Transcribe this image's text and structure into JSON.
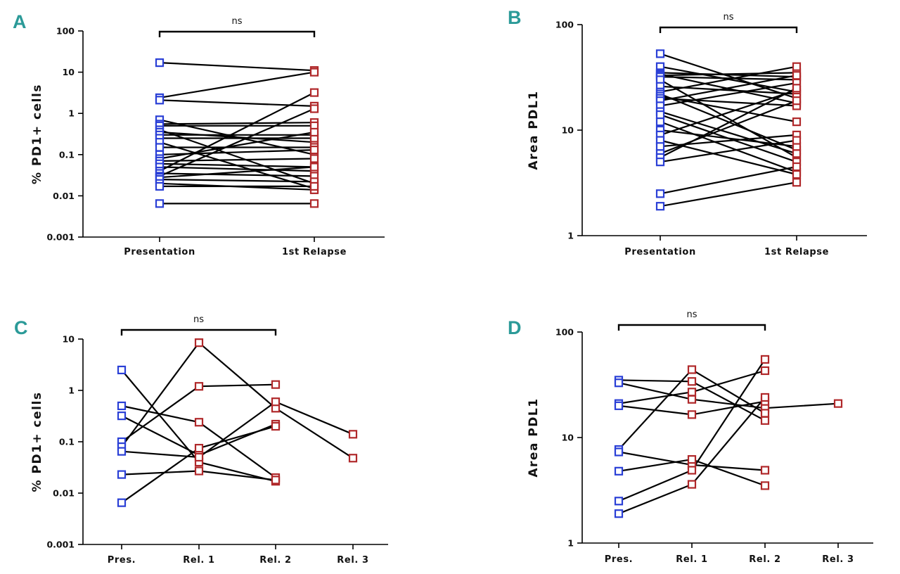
{
  "panels": [
    {
      "letter": "A",
      "ylabel": "% PD1+ cells",
      "ylim": [
        0.001,
        100
      ],
      "yscale": "log",
      "yticks": [
        "100",
        "10",
        "1",
        "0.1",
        "0.01",
        "0.001"
      ],
      "categories": [
        "Presentation",
        "1st Relapse"
      ],
      "significance": "ns",
      "bracket_span": [
        0,
        1
      ]
    },
    {
      "letter": "B",
      "ylabel": "Area PDL1",
      "ylim": [
        1,
        100
      ],
      "yscale": "log",
      "yticks": [
        "100",
        "10",
        "1"
      ],
      "categories": [
        "Presentation",
        "1st Relapse"
      ],
      "significance": "ns",
      "bracket_span": [
        0,
        1
      ]
    },
    {
      "letter": "C",
      "ylabel": "% PD1+ cells",
      "ylim": [
        0.001,
        10
      ],
      "yscale": "log",
      "yticks": [
        "10",
        "1",
        "0.1",
        "0.01",
        "0.001"
      ],
      "categories": [
        "Pres.",
        "Rel. 1",
        "Rel. 2",
        "Rel. 3"
      ],
      "significance": "ns",
      "bracket_span": [
        0,
        2
      ]
    },
    {
      "letter": "D",
      "ylabel": "Area PDL1",
      "ylim": [
        1,
        100
      ],
      "yscale": "log",
      "yticks": [
        "100",
        "10",
        "1"
      ],
      "categories": [
        "Pres.",
        "Rel. 1",
        "Rel. 2",
        "Rel. 3"
      ],
      "significance": "ns",
      "bracket_span": [
        0,
        2
      ]
    }
  ],
  "colors": {
    "presentation": "#2a3fd6",
    "relapse": "#b0282a",
    "line": "#000000",
    "letter": "#2b9a98"
  },
  "chart_data": [
    {
      "type": "scatter",
      "yscale": "log",
      "ylabel": "% PD1+ cells",
      "categories": [
        "Presentation",
        "1st Relapse"
      ],
      "ylim": [
        0.001,
        100
      ],
      "paired_values": [
        [
          17,
          11
        ],
        [
          2.4,
          10
        ],
        [
          2.1,
          1.5
        ],
        [
          0.7,
          0.1
        ],
        [
          0.55,
          0.6
        ],
        [
          0.5,
          0.5
        ],
        [
          0.4,
          0.02
        ],
        [
          0.35,
          0.2
        ],
        [
          0.3,
          0.3
        ],
        [
          0.25,
          0.25
        ],
        [
          0.2,
          0.015
        ],
        [
          0.15,
          0.15
        ],
        [
          0.1,
          0.13
        ],
        [
          0.08,
          0.35
        ],
        [
          0.07,
          0.08
        ],
        [
          0.06,
          0.05
        ],
        [
          0.05,
          0.04
        ],
        [
          0.04,
          3.2
        ],
        [
          0.035,
          0.03
        ],
        [
          0.03,
          1.3
        ],
        [
          0.028,
          0.05
        ],
        [
          0.025,
          0.022
        ],
        [
          0.02,
          0.014
        ],
        [
          0.017,
          0.017
        ],
        [
          0.0065,
          0.0065
        ]
      ]
    },
    {
      "type": "scatter",
      "yscale": "log",
      "ylabel": "Area PDL1",
      "categories": [
        "Presentation",
        "1st Relapse"
      ],
      "ylim": [
        1,
        100
      ],
      "paired_values": [
        [
          53,
          20
        ],
        [
          40,
          23
        ],
        [
          35,
          32
        ],
        [
          34,
          18
        ],
        [
          33,
          35
        ],
        [
          32,
          30
        ],
        [
          30,
          5.5
        ],
        [
          26,
          22
        ],
        [
          23,
          40
        ],
        [
          22,
          6.5
        ],
        [
          21,
          12
        ],
        [
          20,
          17
        ],
        [
          19,
          33
        ],
        [
          17,
          28
        ],
        [
          15,
          6
        ],
        [
          14,
          5
        ],
        [
          12,
          4
        ],
        [
          10,
          7
        ],
        [
          9,
          24
        ],
        [
          8,
          3.8
        ],
        [
          7,
          9
        ],
        [
          6,
          19
        ],
        [
          5.5,
          25
        ],
        [
          5,
          8
        ],
        [
          2.5,
          4.5
        ],
        [
          1.9,
          3.2
        ]
      ]
    },
    {
      "type": "scatter",
      "yscale": "log",
      "ylabel": "% PD1+ cells",
      "categories": [
        "Pres.",
        "Rel. 1",
        "Rel. 2",
        "Rel. 3"
      ],
      "ylim": [
        0.001,
        10
      ],
      "paired_values": [
        [
          2.5,
          0.04,
          0.017
        ],
        [
          0.5,
          0.24,
          0.02
        ],
        [
          0.32,
          0.055,
          0.22
        ],
        [
          0.1,
          1.2,
          1.3
        ],
        [
          0.08,
          8.5,
          0.45,
          0.048
        ],
        [
          0.065,
          0.05,
          0.6,
          0.14
        ],
        [
          0.023,
          0.027,
          0.018
        ],
        [
          0.0065,
          0.075,
          0.2
        ]
      ]
    },
    {
      "type": "scatter",
      "yscale": "log",
      "ylabel": "Area PDL1",
      "categories": [
        "Pres.",
        "Rel. 1",
        "Rel. 2",
        "Rel. 3"
      ],
      "ylim": [
        1,
        100
      ],
      "paired_values": [
        [
          35,
          34,
          14.5
        ],
        [
          33,
          23,
          19,
          21
        ],
        [
          21,
          27,
          43
        ],
        [
          20,
          16.5,
          22
        ],
        [
          7.7,
          44,
          17
        ],
        [
          7.3,
          5.5,
          4.9
        ],
        [
          4.8,
          6.2,
          3.5
        ],
        [
          2.5,
          4.9,
          55
        ],
        [
          1.9,
          3.6,
          24
        ]
      ]
    }
  ]
}
